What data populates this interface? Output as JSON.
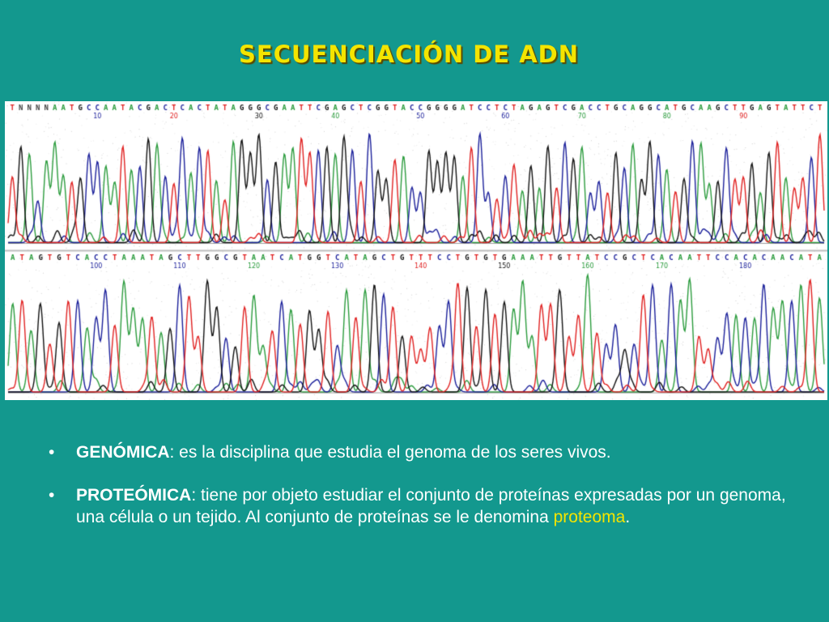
{
  "slide": {
    "title": "SECUENCIACIÓN DE ADN",
    "colors": {
      "background": "#13988e",
      "title": "#f4e400",
      "highlight": "#f4e400",
      "base_A": "#2a9b3c",
      "base_C": "#1a1f9a",
      "base_G": "#111111",
      "base_T": "#e02020"
    }
  },
  "chromatogram": {
    "rows": [
      {
        "sequence": "TNNNNAATGCCAATACGACTCACTATAGGGCGAATTCGAGCTCGGTACCGGGGATCCTCTAGAGTCGACCTGCAGGCATGCAAGCTTGAGTATTCT",
        "position_labels": [
          "10",
          "20",
          "30",
          "40",
          "50",
          "60",
          "70",
          "80",
          "90"
        ]
      },
      {
        "sequence": "ATAGTGTCACCTAAATAGCTTGGCGTAATCATGGTCATAGCTGTTTCCTGTGTGAAATTGTTATCCGCTCACAATTCCACACAACATA",
        "position_labels": [
          "100",
          "110",
          "120",
          "130",
          "140",
          "150",
          "160",
          "170",
          "180"
        ]
      }
    ]
  },
  "bullets": [
    {
      "marker": "•",
      "term": "GENÓMICA",
      "text": ": es la disciplina que estudia el genoma de los seres vivos."
    },
    {
      "marker": "•",
      "term": "PROTEÓMICA",
      "text_before": ": tiene por objeto estudiar el conjunto de proteínas expresadas por un genoma, una célula o un tejido.  Al conjunto de proteínas se le denomina ",
      "highlight": "proteoma",
      "text_after": "."
    }
  ]
}
